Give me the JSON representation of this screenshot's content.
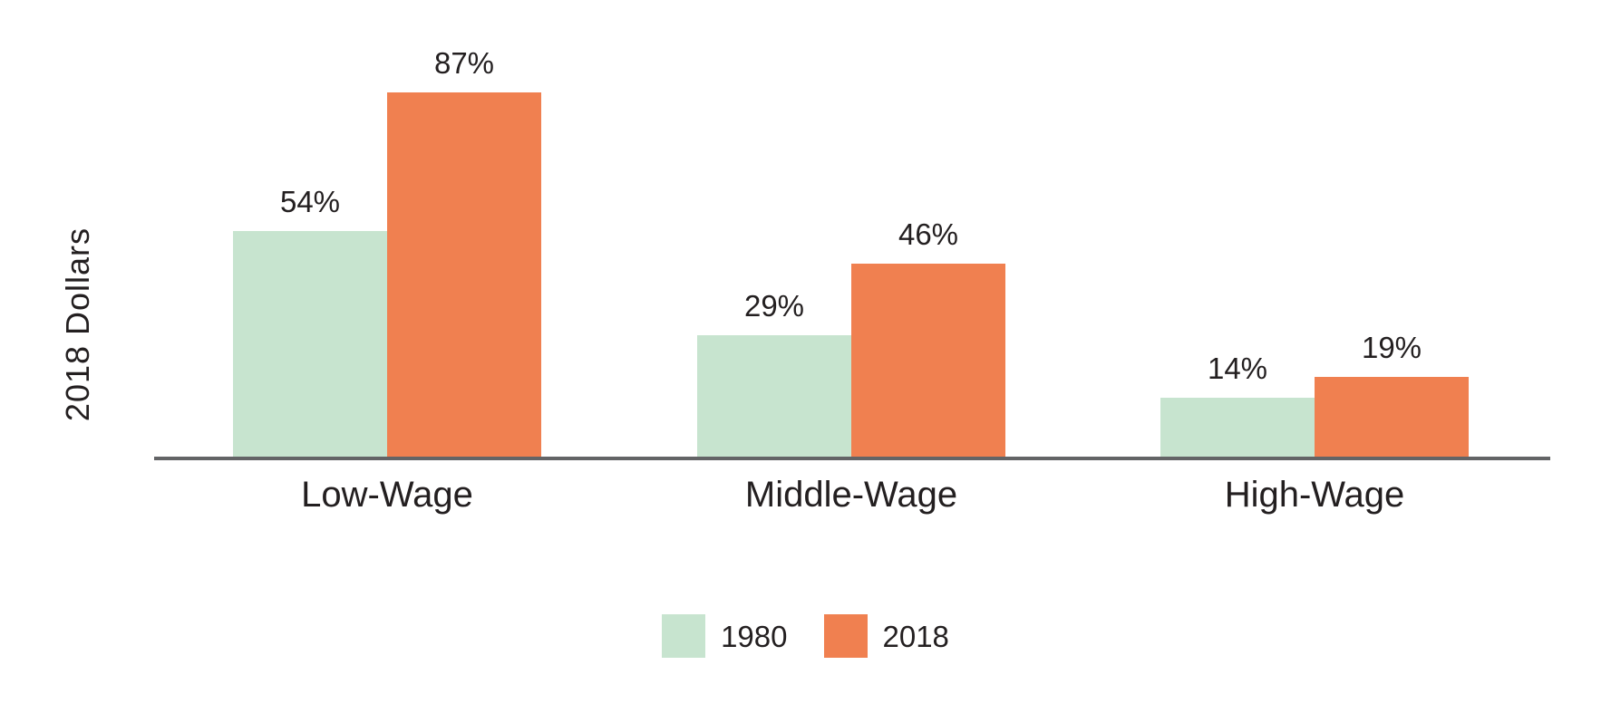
{
  "chart_data": {
    "type": "bar",
    "title": "",
    "ylabel": "2018 Dollars",
    "xlabel": "",
    "categories": [
      "Low-Wage",
      "Middle-Wage",
      "High-Wage"
    ],
    "series": [
      {
        "name": "1980",
        "color": "#c7e4cf",
        "values": [
          54,
          29,
          14
        ],
        "labels": [
          "54%",
          "29%",
          "14%"
        ]
      },
      {
        "name": "2018",
        "color": "#f08050",
        "values": [
          87,
          46,
          19
        ],
        "labels": [
          "87%",
          "46%",
          "19%"
        ]
      }
    ],
    "unit": "%",
    "ylim": [
      0,
      100
    ],
    "grid": false,
    "y_axis_ticks_visible": false,
    "legend_position": "bottom",
    "axis_color": "#636466",
    "text_color": "#231f20",
    "background_color": "#ffffff"
  }
}
